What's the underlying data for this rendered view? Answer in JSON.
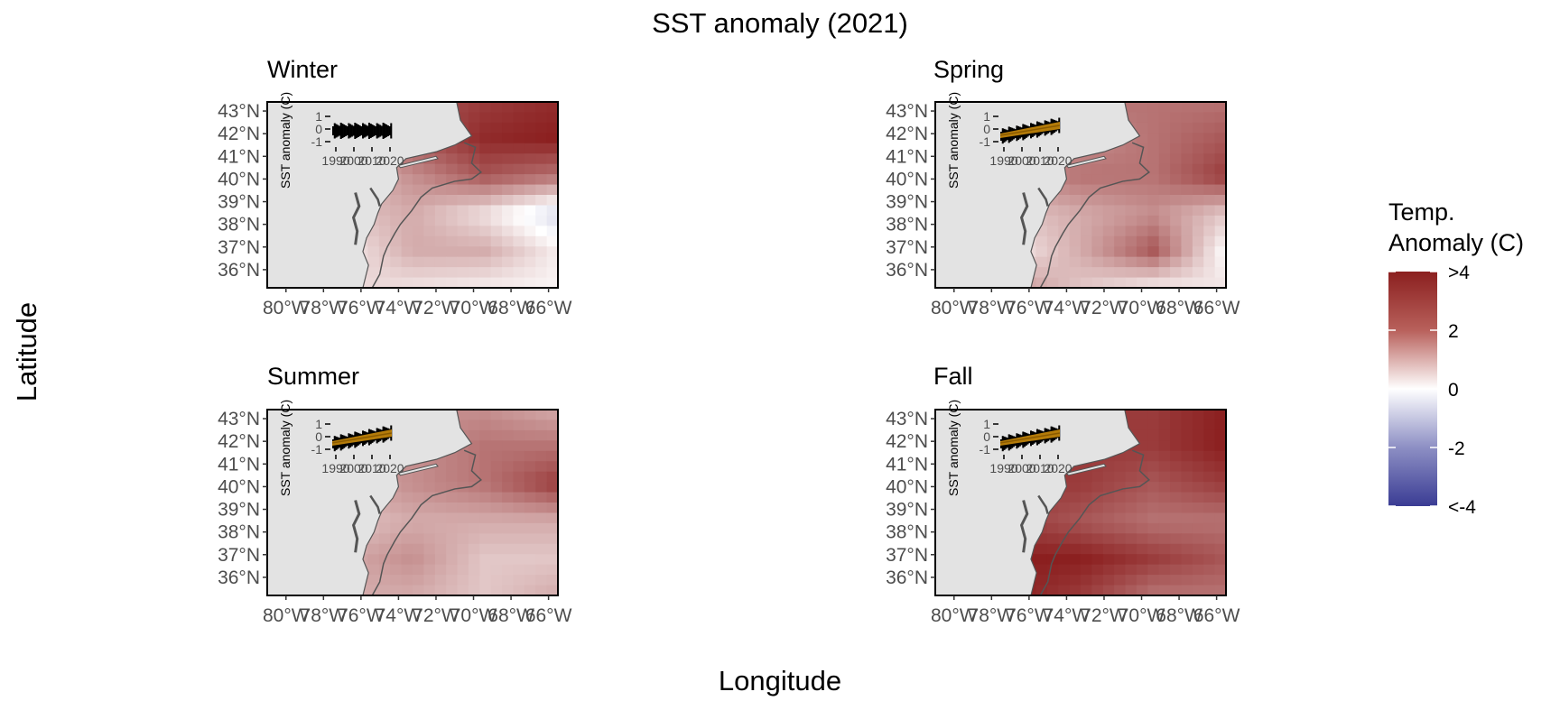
{
  "figure": {
    "title": "SST anomaly (2021)",
    "xlabel": "Longitude",
    "ylabel": "Latitude"
  },
  "colors": {
    "land": "#e3e3e3",
    "high": "#8b1f1f",
    "mid": "#ffffff",
    "low": "#3a3c94",
    "outline": "#555555",
    "inset_trend": "#d4900a"
  },
  "chart_data": [
    {
      "type": "heatmap",
      "panel": "Winter",
      "xlim": [
        -81,
        -65.5
      ],
      "ylim": [
        35.2,
        43.4
      ],
      "x_ticks": [
        "80°W",
        "78°W",
        "76°W",
        "74°W",
        "72°W",
        "70°W",
        "68°W",
        "66°W"
      ],
      "y_ticks": [
        "43°N",
        "42°N",
        "41°N",
        "40°N",
        "39°N",
        "38°N",
        "37°N",
        "36°N"
      ],
      "inset": {
        "ylabel": "SST anomaly (C)",
        "y_ticks": [
          "1",
          "0",
          "-1"
        ],
        "x_ticks": [
          "1990",
          "2000",
          "2010",
          "2020"
        ],
        "trend": false
      },
      "field": [
        [
          0.5,
          2.0,
          3.0,
          3.5,
          3.8
        ],
        [
          0.5,
          1.5,
          3.0,
          3.8,
          4.0
        ],
        [
          0.3,
          1.0,
          2.0,
          3.0,
          2.5
        ],
        [
          0.0,
          1.0,
          1.5,
          0.5,
          -0.8
        ],
        [
          -0.3,
          0.3,
          1.5,
          1.5,
          0.3
        ],
        [
          -1.5,
          0.8,
          0.5,
          0.3,
          0.2
        ]
      ]
    },
    {
      "type": "heatmap",
      "panel": "Spring",
      "xlim": [
        -81,
        -65.5
      ],
      "ylim": [
        35.2,
        43.4
      ],
      "x_ticks": [
        "80°W",
        "78°W",
        "76°W",
        "74°W",
        "72°W",
        "70°W",
        "68°W",
        "66°W"
      ],
      "y_ticks": [
        "43°N",
        "42°N",
        "41°N",
        "40°N",
        "39°N",
        "38°N",
        "37°N",
        "36°N"
      ],
      "inset": {
        "ylabel": "SST anomaly (C)",
        "y_ticks": [
          "1",
          "0",
          "-1"
        ],
        "x_ticks": [
          "1990",
          "2000",
          "2010",
          "2020"
        ],
        "trend": true
      },
      "field": [
        [
          2.0,
          2.5,
          2.5,
          2.5,
          2.5
        ],
        [
          1.5,
          2.0,
          2.0,
          2.5,
          3.0
        ],
        [
          1.5,
          2.0,
          2.5,
          2.5,
          3.5
        ],
        [
          1.0,
          1.0,
          1.5,
          2.0,
          1.0
        ],
        [
          1.0,
          0.3,
          1.5,
          3.0,
          0.0
        ],
        [
          1.5,
          2.0,
          1.0,
          0.3,
          0.5
        ]
      ]
    },
    {
      "type": "heatmap",
      "panel": "Summer",
      "xlim": [
        -81,
        -65.5
      ],
      "ylim": [
        35.2,
        43.4
      ],
      "x_ticks": [
        "80°W",
        "78°W",
        "76°W",
        "74°W",
        "72°W",
        "70°W",
        "68°W",
        "66°W"
      ],
      "y_ticks": [
        "43°N",
        "42°N",
        "41°N",
        "40°N",
        "39°N",
        "38°N",
        "37°N",
        "36°N"
      ],
      "inset": {
        "ylabel": "SST anomaly (C)",
        "y_ticks": [
          "1",
          "0",
          "-1"
        ],
        "x_ticks": [
          "1990",
          "2000",
          "2010",
          "2020"
        ],
        "trend": true
      },
      "field": [
        [
          1.5,
          2.0,
          2.0,
          2.0,
          1.5
        ],
        [
          1.5,
          2.0,
          2.0,
          2.5,
          2.5
        ],
        [
          1.0,
          1.5,
          2.0,
          2.5,
          3.5
        ],
        [
          0.5,
          1.0,
          1.5,
          1.5,
          1.5
        ],
        [
          0.5,
          1.5,
          2.0,
          1.0,
          1.0
        ],
        [
          1.0,
          1.5,
          1.5,
          1.0,
          1.5
        ]
      ]
    },
    {
      "type": "heatmap",
      "panel": "Fall",
      "xlim": [
        -81,
        -65.5
      ],
      "ylim": [
        35.2,
        43.4
      ],
      "x_ticks": [
        "80°W",
        "78°W",
        "76°W",
        "74°W",
        "72°W",
        "70°W",
        "68°W",
        "66°W"
      ],
      "y_ticks": [
        "43°N",
        "42°N",
        "41°N",
        "40°N",
        "39°N",
        "38°N",
        "37°N",
        "36°N"
      ],
      "inset": {
        "ylabel": "SST anomaly (C)",
        "y_ticks": [
          "1",
          "0",
          "-1"
        ],
        "x_ticks": [
          "1990",
          "2000",
          "2010",
          "2020"
        ],
        "trend": true
      },
      "field": [
        [
          2.5,
          3.0,
          3.5,
          3.5,
          4.0
        ],
        [
          3.0,
          3.5,
          3.5,
          3.5,
          4.0
        ],
        [
          3.0,
          3.5,
          3.5,
          3.0,
          3.5
        ],
        [
          3.5,
          3.5,
          3.0,
          2.5,
          2.5
        ],
        [
          4.0,
          4.0,
          4.0,
          3.5,
          3.0
        ],
        [
          4.0,
          4.0,
          3.5,
          2.5,
          2.5
        ]
      ]
    }
  ],
  "legend": {
    "title_line1": "Temp.",
    "title_line2": "Anomaly (C)",
    "labels": [
      ">4",
      "2",
      "0",
      "-2",
      "<-4"
    ],
    "range": [
      -4,
      4
    ]
  }
}
